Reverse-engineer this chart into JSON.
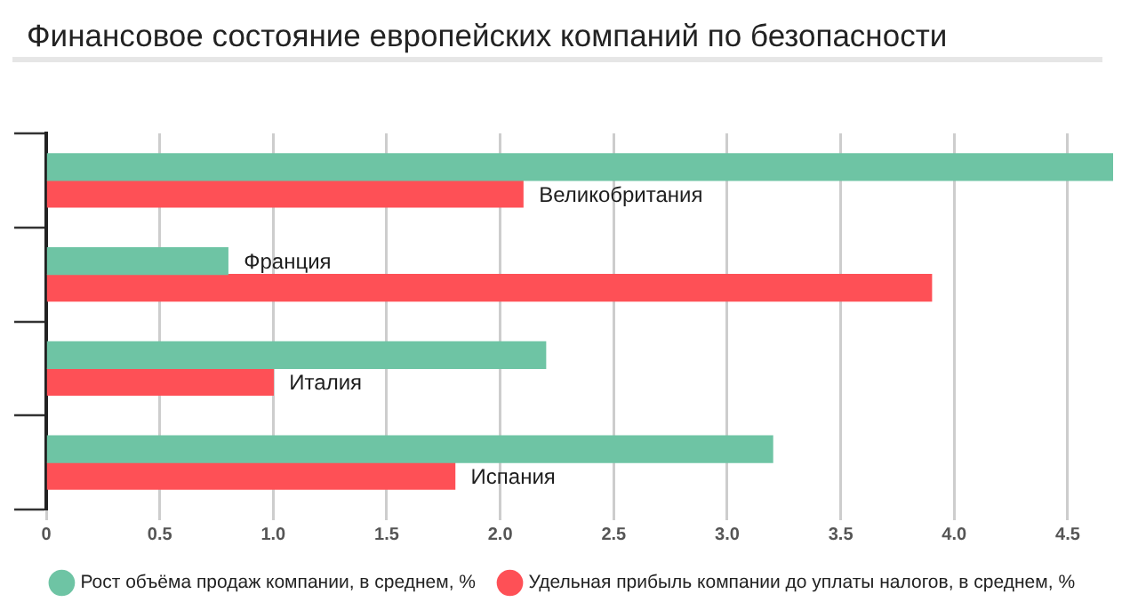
{
  "chart_data": {
    "type": "bar",
    "orientation": "horizontal",
    "title": "Финансовое состояние европейских компаний по безопасности",
    "categories": [
      "Великобритания",
      "Франция",
      "Италия",
      "Испания"
    ],
    "series": [
      {
        "name": "Рост объёма продаж компании, в среднем, %",
        "color": "#6ec4a4",
        "values": [
          4.7,
          0.8,
          2.2,
          3.2
        ]
      },
      {
        "name": "Удельная прибыль компании до уплаты налогов, в среднем, %",
        "color": "#fe5056",
        "values": [
          2.1,
          3.9,
          1.0,
          1.8
        ]
      }
    ],
    "xlim": [
      0,
      4.7
    ],
    "xticks": [
      0,
      0.5,
      {
        "value": 1,
        "label": "1.0"
      },
      1.5,
      {
        "value": 2,
        "label": "2.0"
      },
      2.5,
      {
        "value": 3,
        "label": "3.0"
      },
      3.5,
      {
        "value": 4,
        "label": "4.0"
      },
      4.5
    ],
    "grid": "x",
    "legend": "bottom",
    "tick_labels": "x"
  }
}
